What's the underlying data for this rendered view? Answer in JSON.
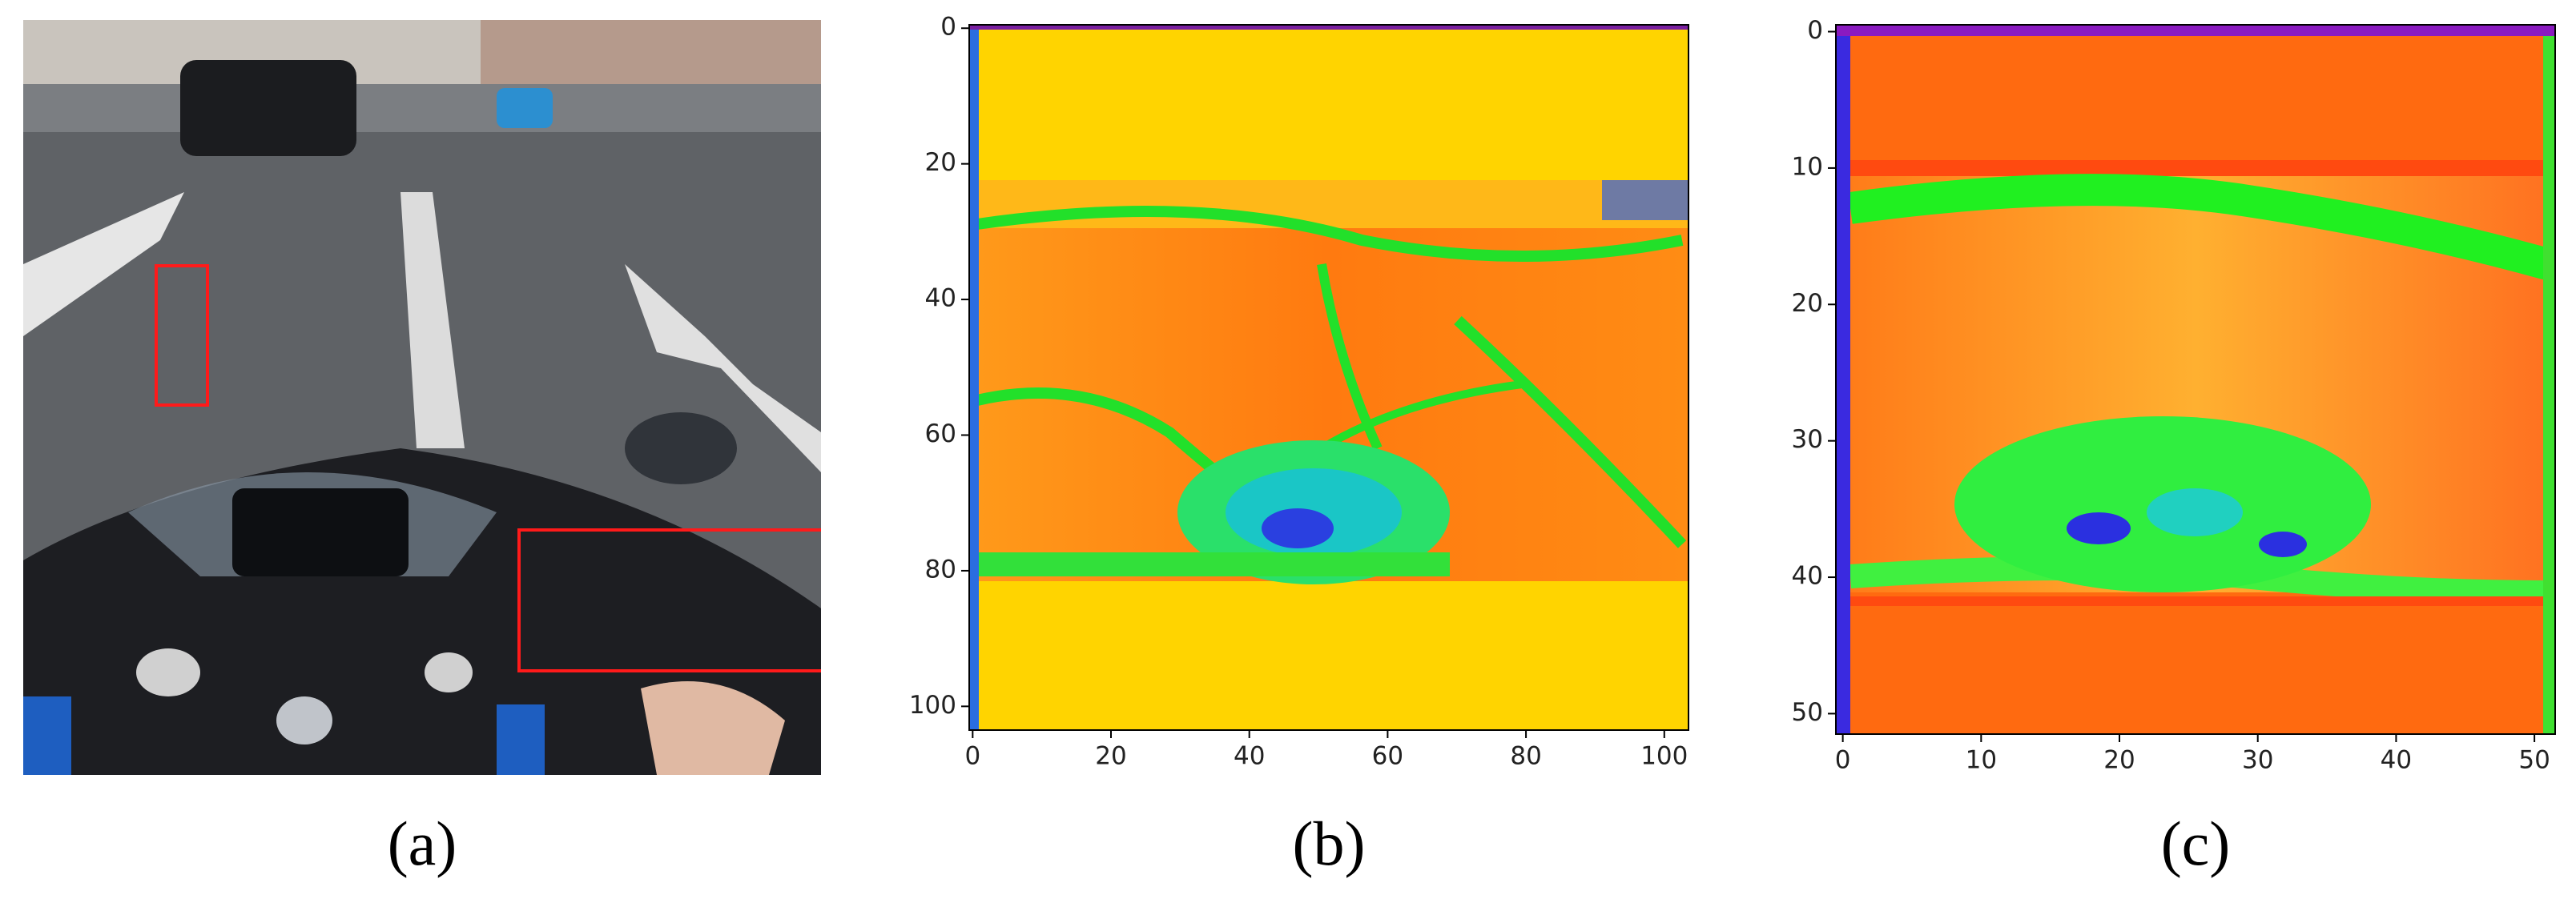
{
  "figure": {
    "panels": [
      {
        "caption": "(a)"
      },
      {
        "caption": "(b)",
        "xlim": [
          -0.5,
          103.5
        ],
        "ylim": [
          103.5,
          -0.5
        ],
        "xticks": [
          0,
          20,
          40,
          60,
          80,
          100
        ],
        "yticks": [
          0,
          20,
          40,
          60,
          80,
          100
        ]
      },
      {
        "caption": "(c)",
        "xlim": [
          -0.5,
          51.5
        ],
        "ylim": [
          51.5,
          -0.5
        ],
        "xticks": [
          0,
          10,
          20,
          30,
          40,
          50
        ],
        "yticks": [
          0,
          10,
          20,
          30,
          40,
          50
        ]
      }
    ]
  }
}
